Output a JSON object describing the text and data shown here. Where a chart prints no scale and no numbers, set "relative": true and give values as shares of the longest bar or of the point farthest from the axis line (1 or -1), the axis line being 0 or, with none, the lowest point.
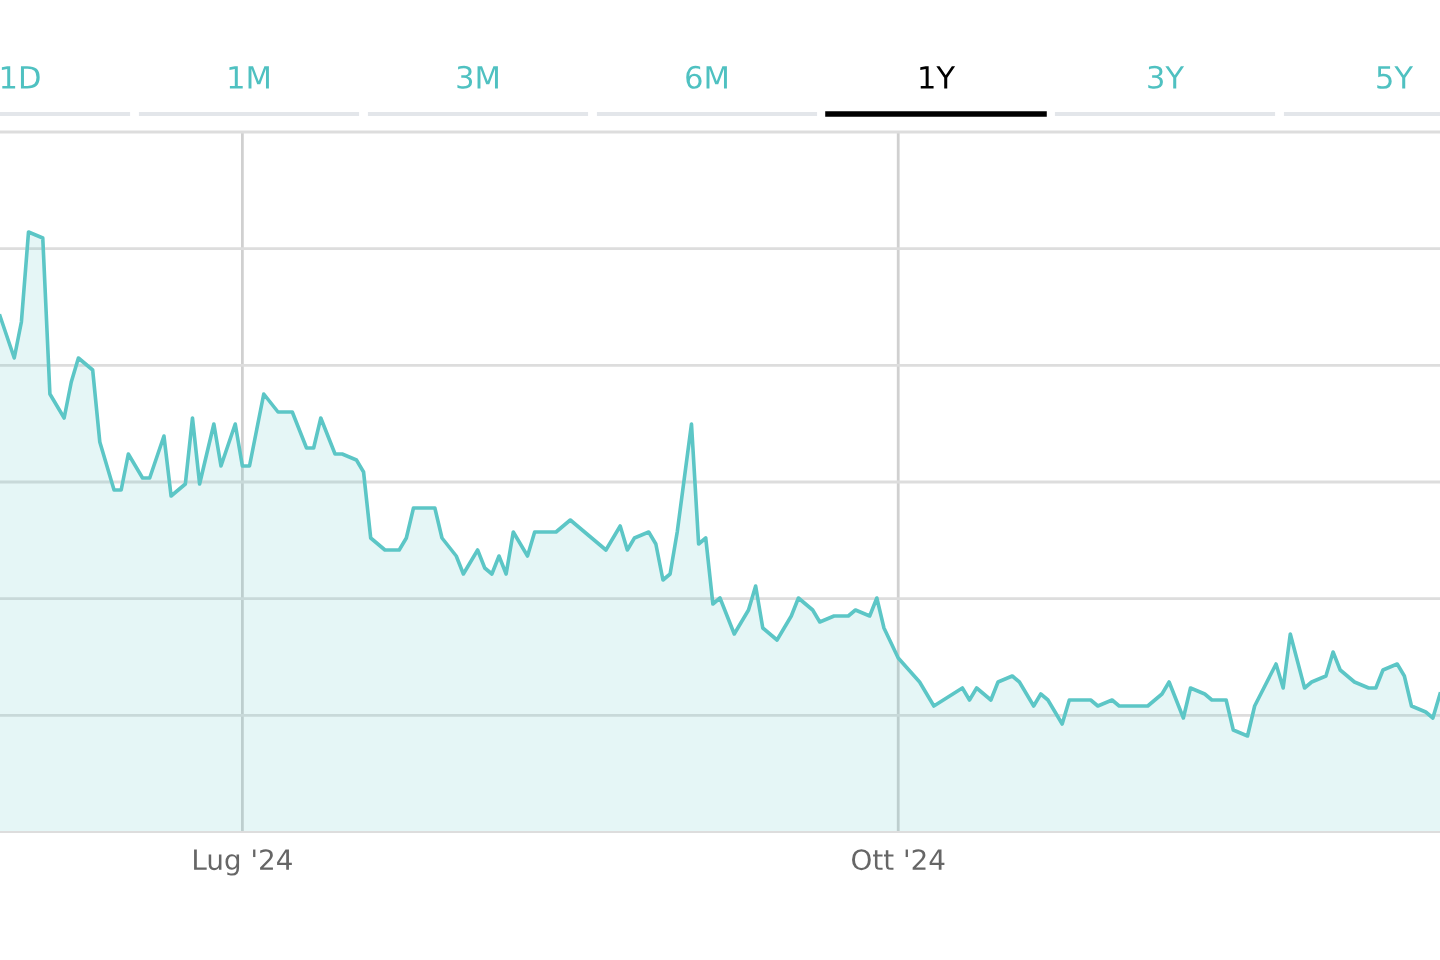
{
  "chart_data": {
    "type": "area",
    "relative": true,
    "grid": true,
    "annotations": [
      "1D",
      "1M",
      "3M",
      "6M",
      "1Y",
      "3Y",
      "5Y"
    ],
    "xlim": [
      "2024-05-28",
      "2024-12-16"
    ],
    "xticks": [
      {
        "value": "2024-07-01",
        "label": "Lug '24"
      },
      {
        "value": "2024-10-01",
        "label": "Ott '24"
      }
    ],
    "series": [
      {
        "color": "#5cc6c6",
        "x": [
          "2024-05-28",
          "2024-05-30",
          "2024-05-31",
          "2024-06-01",
          "2024-06-03",
          "2024-06-04",
          "2024-06-06",
          "2024-06-07",
          "2024-06-08",
          "2024-06-10",
          "2024-06-11",
          "2024-06-13",
          "2024-06-14",
          "2024-06-15",
          "2024-06-17",
          "2024-06-18",
          "2024-06-20",
          "2024-06-21",
          "2024-06-23",
          "2024-06-24",
          "2024-06-25",
          "2024-06-27",
          "2024-06-28",
          "2024-06-30",
          "2024-07-01",
          "2024-07-02",
          "2024-07-04",
          "2024-07-06",
          "2024-07-08",
          "2024-07-10",
          "2024-07-11",
          "2024-07-12",
          "2024-07-14",
          "2024-07-15",
          "2024-07-17",
          "2024-07-18",
          "2024-07-19",
          "2024-07-21",
          "2024-07-23",
          "2024-07-24",
          "2024-07-25",
          "2024-07-27",
          "2024-07-28",
          "2024-07-29",
          "2024-07-31",
          "2024-08-01",
          "2024-08-03",
          "2024-08-04",
          "2024-08-05",
          "2024-08-06",
          "2024-08-07",
          "2024-08-08",
          "2024-08-10",
          "2024-08-11",
          "2024-08-13",
          "2024-08-14",
          "2024-08-16",
          "2024-08-18",
          "2024-08-19",
          "2024-08-21",
          "2024-08-23",
          "2024-08-24",
          "2024-08-25",
          "2024-08-27",
          "2024-08-28",
          "2024-08-29",
          "2024-08-30",
          "2024-08-31",
          "2024-09-02",
          "2024-09-03",
          "2024-09-04",
          "2024-09-05",
          "2024-09-06",
          "2024-09-08",
          "2024-09-10",
          "2024-09-11",
          "2024-09-12",
          "2024-09-14",
          "2024-09-15",
          "2024-09-16",
          "2024-09-17",
          "2024-09-19",
          "2024-09-20",
          "2024-09-22",
          "2024-09-23",
          "2024-09-24",
          "2024-09-25",
          "2024-09-27",
          "2024-09-28",
          "2024-09-29",
          "2024-10-01",
          "2024-10-04",
          "2024-10-06",
          "2024-10-10",
          "2024-10-11",
          "2024-10-12",
          "2024-10-14",
          "2024-10-15",
          "2024-10-17",
          "2024-10-18",
          "2024-10-20",
          "2024-10-21",
          "2024-10-22",
          "2024-10-24",
          "2024-10-25",
          "2024-10-27",
          "2024-10-28",
          "2024-10-29",
          "2024-10-31",
          "2024-11-01",
          "2024-11-02",
          "2024-11-04",
          "2024-11-05",
          "2024-11-07",
          "2024-11-08",
          "2024-11-10",
          "2024-11-11",
          "2024-11-13",
          "2024-11-14",
          "2024-11-15",
          "2024-11-16",
          "2024-11-17",
          "2024-11-19",
          "2024-11-20",
          "2024-11-23",
          "2024-11-24",
          "2024-11-25",
          "2024-11-27",
          "2024-11-28",
          "2024-11-30",
          "2024-12-01",
          "2024-12-02",
          "2024-12-04",
          "2024-12-06",
          "2024-12-07",
          "2024-12-08",
          "2024-12-10",
          "2024-12-11",
          "2024-12-12",
          "2024-12-14",
          "2024-12-15",
          "2024-12-16"
        ],
        "values": [
          0.86,
          0.79,
          0.85,
          1.0,
          0.99,
          0.73,
          0.69,
          0.75,
          0.79,
          0.77,
          0.65,
          0.57,
          0.57,
          0.63,
          0.59,
          0.59,
          0.66,
          0.56,
          0.58,
          0.69,
          0.58,
          0.68,
          0.61,
          0.68,
          0.61,
          0.61,
          0.73,
          0.7,
          0.7,
          0.64,
          0.64,
          0.69,
          0.63,
          0.63,
          0.62,
          0.6,
          0.49,
          0.47,
          0.47,
          0.49,
          0.54,
          0.54,
          0.54,
          0.49,
          0.46,
          0.43,
          0.47,
          0.44,
          0.43,
          0.46,
          0.43,
          0.5,
          0.46,
          0.5,
          0.5,
          0.5,
          0.52,
          0.5,
          0.49,
          0.47,
          0.51,
          0.47,
          0.49,
          0.5,
          0.48,
          0.42,
          0.43,
          0.5,
          0.68,
          0.48,
          0.49,
          0.38,
          0.39,
          0.33,
          0.37,
          0.41,
          0.34,
          0.32,
          0.34,
          0.36,
          0.39,
          0.37,
          0.35,
          0.36,
          0.36,
          0.36,
          0.37,
          0.36,
          0.39,
          0.34,
          0.29,
          0.25,
          0.21,
          0.24,
          0.22,
          0.24,
          0.22,
          0.25,
          0.26,
          0.25,
          0.21,
          0.23,
          0.22,
          0.18,
          0.22,
          0.22,
          0.22,
          0.21,
          0.22,
          0.21,
          0.21,
          0.21,
          0.21,
          0.23,
          0.25,
          0.19,
          0.24,
          0.23,
          0.22,
          0.22,
          0.22,
          0.17,
          0.16,
          0.21,
          0.28,
          0.24,
          0.33,
          0.24,
          0.25,
          0.26,
          0.3,
          0.27,
          0.25,
          0.24,
          0.24,
          0.27,
          0.28,
          0.26,
          0.21,
          0.2,
          0.19,
          0.23
        ]
      }
    ]
  }
}
